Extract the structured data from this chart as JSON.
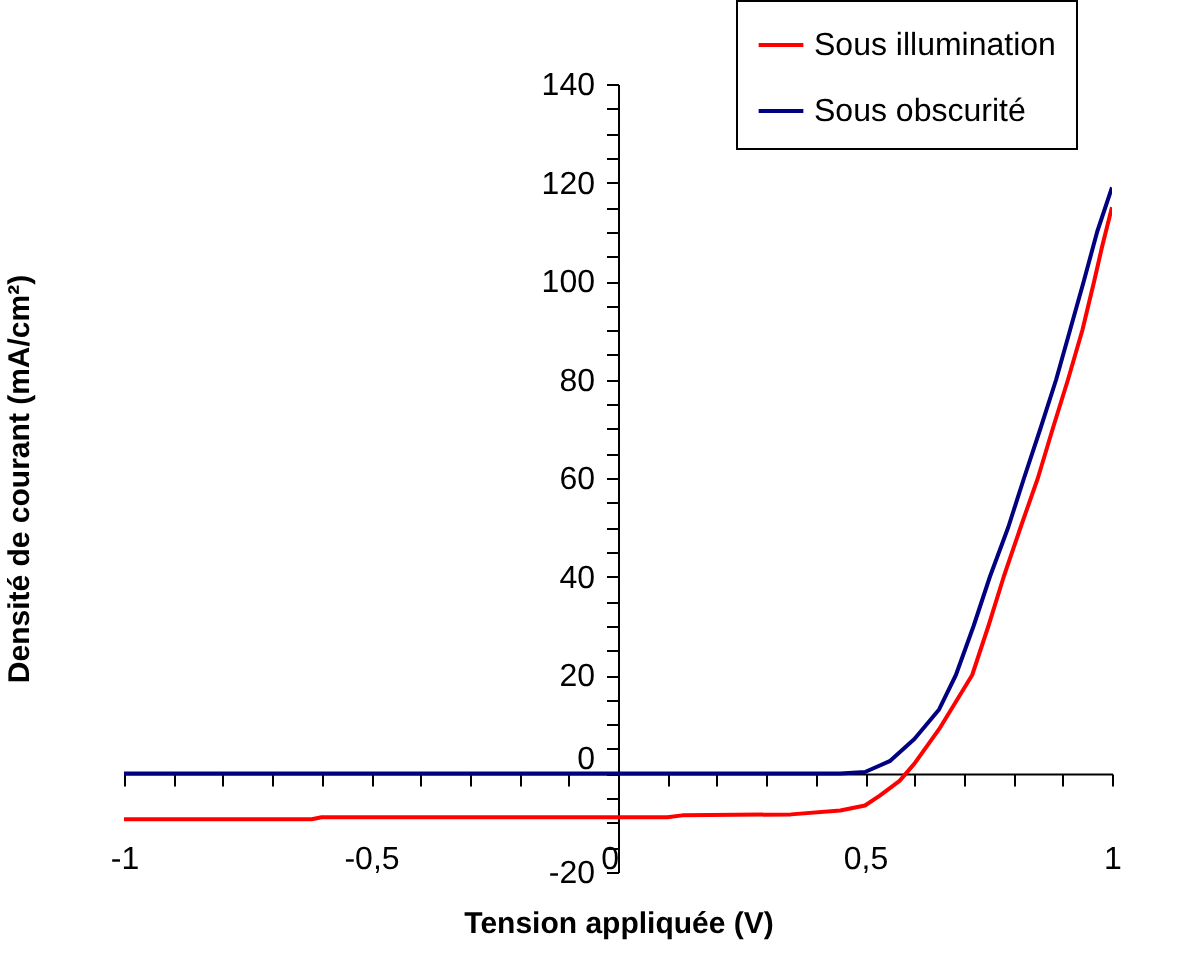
{
  "chart_data": {
    "type": "line",
    "xlabel": "Tension appliquée (V)",
    "ylabel": "Densité de courant (mA/cm²)",
    "xlim": [
      -1,
      1
    ],
    "ylim": [
      -20,
      140
    ],
    "xticks": [
      -1,
      {
        "value": -0.9,
        "label": null
      },
      {
        "value": -0.8,
        "label": null
      },
      {
        "value": -0.7,
        "label": null
      },
      {
        "value": -0.6,
        "label": null
      },
      {
        "value": -0.5,
        "label": "-0,5"
      },
      {
        "value": -0.4,
        "label": null
      },
      {
        "value": -0.3,
        "label": null
      },
      {
        "value": -0.2,
        "label": null
      },
      {
        "value": -0.1,
        "label": null
      },
      0,
      {
        "value": 0.1,
        "label": null
      },
      {
        "value": 0.2,
        "label": null
      },
      {
        "value": 0.3,
        "label": null
      },
      {
        "value": 0.4,
        "label": null
      },
      {
        "value": 0.5,
        "label": "0,5"
      },
      {
        "value": 0.6,
        "label": null
      },
      {
        "value": 0.7,
        "label": null
      },
      {
        "value": 0.8,
        "label": null
      },
      {
        "value": 0.9,
        "label": null
      },
      1
    ],
    "yticks": [
      -20,
      {
        "value": -15,
        "label": null
      },
      {
        "value": -10,
        "label": null
      },
      {
        "value": -5,
        "label": null
      },
      0,
      {
        "value": 5,
        "label": null
      },
      {
        "value": 10,
        "label": null
      },
      {
        "value": 15,
        "label": null
      },
      20,
      {
        "value": 25,
        "label": null
      },
      {
        "value": 30,
        "label": null
      },
      {
        "value": 35,
        "label": null
      },
      40,
      {
        "value": 45,
        "label": null
      },
      {
        "value": 50,
        "label": null
      },
      {
        "value": 55,
        "label": null
      },
      60,
      {
        "value": 65,
        "label": null
      },
      {
        "value": 70,
        "label": null
      },
      {
        "value": 75,
        "label": null
      },
      80,
      {
        "value": 85,
        "label": null
      },
      {
        "value": 90,
        "label": null
      },
      {
        "value": 95,
        "label": null
      },
      100,
      {
        "value": 105,
        "label": null
      },
      {
        "value": 110,
        "label": null
      },
      {
        "value": 115,
        "label": null
      },
      120,
      {
        "value": 125,
        "label": null
      },
      {
        "value": 130,
        "label": null
      },
      {
        "value": 135,
        "label": null
      },
      140
    ],
    "grid": false,
    "legend": "top right",
    "marker": "none",
    "line_style": "solid",
    "series": [
      {
        "name": "Sous illumination",
        "color": "#ff0000",
        "x": [
          -1,
          -0.62,
          -0.6,
          0.1,
          0.13,
          0.35,
          0.45,
          0.5,
          0.53,
          0.57,
          0.6,
          0.65,
          0.717,
          0.75,
          0.781,
          0.815,
          0.85,
          0.88,
          0.911,
          0.94,
          0.964,
          0.98,
          1.0
        ],
        "values": [
          -9.3,
          -9.3,
          -8.9,
          -8.9,
          -8.5,
          -8.3,
          -7.5,
          -6.5,
          -4.5,
          -1.5,
          2,
          9,
          20,
          30,
          40,
          50,
          60,
          70,
          80,
          90,
          100,
          107,
          115
        ]
      },
      {
        "name": "Sous obscurité",
        "color": "#000080",
        "x": [
          -1,
          0.45,
          0.5,
          0.55,
          0.6,
          0.65,
          0.684,
          0.72,
          0.753,
          0.79,
          0.822,
          0.855,
          0.887,
          0.915,
          0.943,
          0.97,
          1.0
        ],
        "values": [
          0,
          0,
          0.3,
          2.5,
          7,
          13,
          20,
          30,
          40,
          50,
          60,
          70,
          80,
          90,
          100,
          110,
          119
        ]
      }
    ]
  }
}
